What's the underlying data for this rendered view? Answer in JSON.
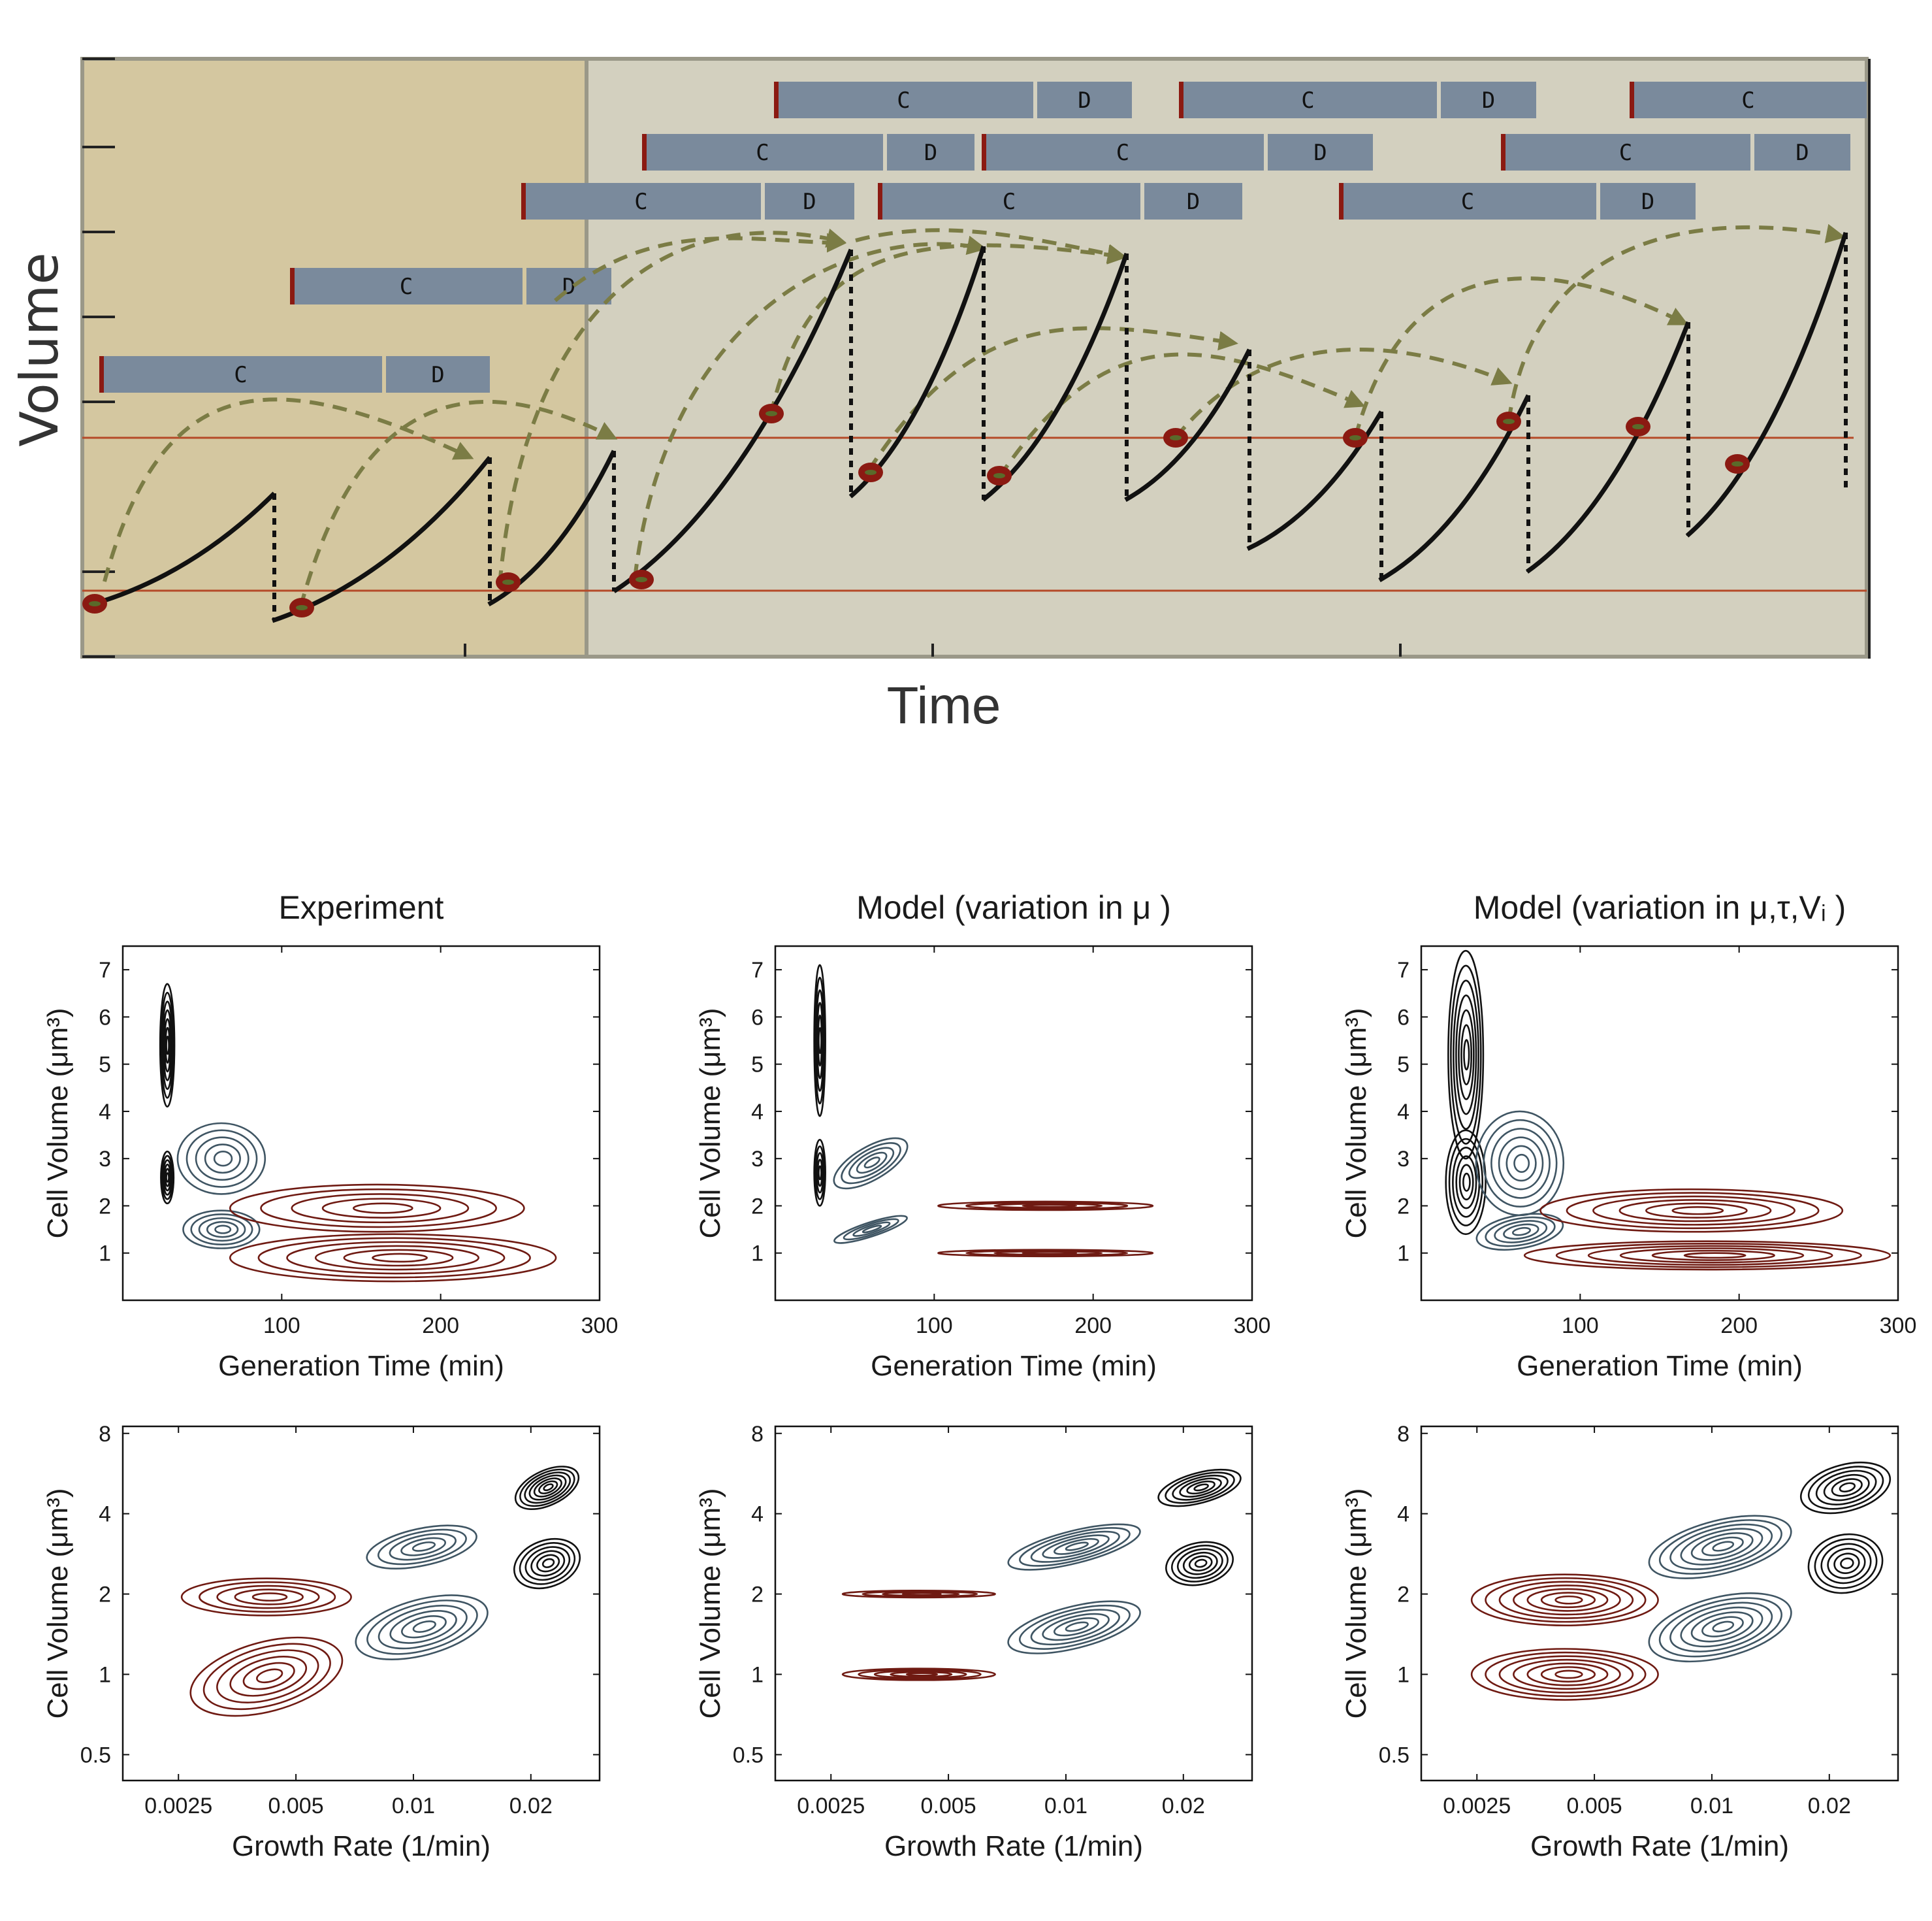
{
  "top": {
    "ylabel": "Volume",
    "xlabel": "Time",
    "c_label": "C",
    "d_label": "D"
  },
  "colors": {
    "black": "#111111",
    "blue": "#3f5563",
    "red": "#6f1a12",
    "bar": "#7a8a9c",
    "arrow": "#7b7c45",
    "threshold": "#b54a28",
    "bg_left": "#d4c7a0",
    "bg_right": "#d3d0bf"
  },
  "chart_data": [
    {
      "type": "contour",
      "title": "Experiment",
      "xlabel": "Generation Time (min)",
      "ylabel": "Cell Volume (μm³)",
      "xlim": [
        0,
        300
      ],
      "ylim": [
        0,
        7.5
      ],
      "xticks": [
        100,
        200,
        300
      ],
      "yticks": [
        1,
        2,
        3,
        4,
        5,
        6,
        7
      ],
      "clusters": [
        {
          "color": "black",
          "x": 28,
          "y": 5.4,
          "sx": 9,
          "sy": 1.3,
          "rot": 0,
          "levels": 7
        },
        {
          "color": "black",
          "x": 28,
          "y": 2.6,
          "sx": 8,
          "sy": 0.55,
          "rot": 0,
          "levels": 6
        },
        {
          "color": "blue",
          "x": 62,
          "y": 3.0,
          "sx": 55,
          "sy": 0.75,
          "rot": 0,
          "levels": 5
        },
        {
          "color": "blue",
          "x": 62,
          "y": 1.5,
          "sx": 48,
          "sy": 0.4,
          "rot": 0,
          "levels": 5
        },
        {
          "color": "red",
          "x": 160,
          "y": 1.95,
          "sx": 185,
          "sy": 0.5,
          "rot": 0,
          "levels": 5
        },
        {
          "color": "red",
          "x": 170,
          "y": 0.9,
          "sx": 205,
          "sy": 0.5,
          "rot": 0,
          "levels": 6
        }
      ]
    },
    {
      "type": "contour",
      "title": "Model (variation in μ )",
      "xlabel": "Generation Time (min)",
      "ylabel": "Cell Volume (μm³)",
      "xlim": [
        0,
        300
      ],
      "ylim": [
        0,
        7.5
      ],
      "xticks": [
        100,
        200,
        300
      ],
      "yticks": [
        1,
        2,
        3,
        4,
        5,
        6,
        7
      ],
      "clusters": [
        {
          "color": "black",
          "x": 28,
          "y": 5.5,
          "sx": 7,
          "sy": 1.6,
          "rot": 0,
          "levels": 6
        },
        {
          "color": "black",
          "x": 28,
          "y": 2.7,
          "sx": 7,
          "sy": 0.7,
          "rot": 0,
          "levels": 5
        },
        {
          "color": "blue",
          "x": 60,
          "y": 2.9,
          "sx": 52,
          "sy": 0.35,
          "rot": -30,
          "levels": 5
        },
        {
          "color": "blue",
          "x": 60,
          "y": 1.5,
          "sx": 48,
          "sy": 0.15,
          "rot": -18,
          "levels": 4
        },
        {
          "color": "red",
          "x": 170,
          "y": 2.0,
          "sx": 135,
          "sy": 0.09,
          "rot": 0,
          "levels": 4
        },
        {
          "color": "red",
          "x": 170,
          "y": 1.0,
          "sx": 135,
          "sy": 0.07,
          "rot": 0,
          "levels": 4
        }
      ]
    },
    {
      "type": "contour",
      "title": "Model (variation in μ,τ,Vᵢ )",
      "xlabel": "Generation Time (min)",
      "ylabel": "Cell Volume (μm³)",
      "xlim": [
        0,
        300
      ],
      "ylim": [
        0,
        7.5
      ],
      "xticks": [
        100,
        200,
        300
      ],
      "yticks": [
        1,
        2,
        3,
        4,
        5,
        6,
        7
      ],
      "clusters": [
        {
          "color": "black",
          "x": 28,
          "y": 5.2,
          "sx": 22,
          "sy": 2.2,
          "rot": 0,
          "levels": 7
        },
        {
          "color": "black",
          "x": 28,
          "y": 2.5,
          "sx": 25,
          "sy": 1.1,
          "rot": 0,
          "levels": 6
        },
        {
          "color": "blue",
          "x": 62,
          "y": 2.9,
          "sx": 55,
          "sy": 1.1,
          "rot": 0,
          "levels": 6
        },
        {
          "color": "blue",
          "x": 62,
          "y": 1.45,
          "sx": 55,
          "sy": 0.35,
          "rot": -10,
          "levels": 5
        },
        {
          "color": "red",
          "x": 170,
          "y": 1.9,
          "sx": 190,
          "sy": 0.45,
          "rot": 0,
          "levels": 6
        },
        {
          "color": "red",
          "x": 180,
          "y": 0.95,
          "sx": 230,
          "sy": 0.3,
          "rot": 0,
          "levels": 6
        }
      ]
    },
    {
      "type": "contour",
      "xlabel": "Growth Rate (1/min)",
      "ylabel": "Cell Volume (μm³)",
      "xscale": "log",
      "yscale": "log",
      "xlim": [
        0.0018,
        0.03
      ],
      "ylim": [
        0.4,
        8.5
      ],
      "xticks": [
        0.0025,
        0.005,
        0.01,
        0.02
      ],
      "yticks": [
        0.5,
        1,
        2,
        4,
        8
      ],
      "clusters": [
        {
          "color": "red",
          "x": 0.0042,
          "y": 1.95,
          "sx": 0.5,
          "sy": 0.16,
          "rot": 0,
          "levels": 5
        },
        {
          "color": "red",
          "x": 0.0042,
          "y": 0.98,
          "sx": 0.46,
          "sy": 0.3,
          "rot": -15,
          "levels": 6
        },
        {
          "color": "blue",
          "x": 0.0105,
          "y": 3.0,
          "sx": 0.33,
          "sy": 0.16,
          "rot": -12,
          "levels": 5
        },
        {
          "color": "blue",
          "x": 0.0105,
          "y": 1.5,
          "sx": 0.4,
          "sy": 0.24,
          "rot": -15,
          "levels": 6
        },
        {
          "color": "black",
          "x": 0.022,
          "y": 5.0,
          "sx": 0.2,
          "sy": 0.15,
          "rot": -25,
          "levels": 7
        },
        {
          "color": "black",
          "x": 0.022,
          "y": 2.6,
          "sx": 0.2,
          "sy": 0.2,
          "rot": -20,
          "levels": 6
        }
      ]
    },
    {
      "type": "contour",
      "xlabel": "Growth Rate (1/min)",
      "ylabel": "Cell Volume (μm³)",
      "xscale": "log",
      "yscale": "log",
      "xlim": [
        0.0018,
        0.03
      ],
      "ylim": [
        0.4,
        8.5
      ],
      "xticks": [
        0.0025,
        0.005,
        0.01,
        0.02
      ],
      "yticks": [
        0.5,
        1,
        2,
        4,
        8
      ],
      "clusters": [
        {
          "color": "red",
          "x": 0.0042,
          "y": 2.0,
          "sx": 0.45,
          "sy": 0.03,
          "rot": 0,
          "levels": 4
        },
        {
          "color": "red",
          "x": 0.0042,
          "y": 1.0,
          "sx": 0.45,
          "sy": 0.05,
          "rot": 0,
          "levels": 5
        },
        {
          "color": "blue",
          "x": 0.0105,
          "y": 3.0,
          "sx": 0.4,
          "sy": 0.14,
          "rot": -14,
          "levels": 6
        },
        {
          "color": "blue",
          "x": 0.0105,
          "y": 1.5,
          "sx": 0.4,
          "sy": 0.18,
          "rot": -14,
          "levels": 6
        },
        {
          "color": "black",
          "x": 0.022,
          "y": 5.0,
          "sx": 0.25,
          "sy": 0.13,
          "rot": -15,
          "levels": 6
        },
        {
          "color": "black",
          "x": 0.022,
          "y": 2.6,
          "sx": 0.2,
          "sy": 0.18,
          "rot": -12,
          "levels": 6
        }
      ]
    },
    {
      "type": "contour",
      "xlabel": "Growth Rate (1/min)",
      "ylabel": "Cell Volume (μm³)",
      "xscale": "log",
      "yscale": "log",
      "xlim": [
        0.0018,
        0.03
      ],
      "ylim": [
        0.4,
        8.5
      ],
      "xticks": [
        0.0025,
        0.005,
        0.01,
        0.02
      ],
      "yticks": [
        0.5,
        1,
        2,
        4,
        8
      ],
      "clusters": [
        {
          "color": "red",
          "x": 0.0042,
          "y": 1.9,
          "sx": 0.55,
          "sy": 0.22,
          "rot": 0,
          "levels": 7
        },
        {
          "color": "red",
          "x": 0.0042,
          "y": 1.0,
          "sx": 0.55,
          "sy": 0.22,
          "rot": 0,
          "levels": 7
        },
        {
          "color": "blue",
          "x": 0.0105,
          "y": 3.0,
          "sx": 0.43,
          "sy": 0.23,
          "rot": -14,
          "levels": 7
        },
        {
          "color": "blue",
          "x": 0.0105,
          "y": 1.5,
          "sx": 0.43,
          "sy": 0.26,
          "rot": -14,
          "levels": 7
        },
        {
          "color": "black",
          "x": 0.022,
          "y": 5.0,
          "sx": 0.27,
          "sy": 0.2,
          "rot": -15,
          "levels": 6
        },
        {
          "color": "black",
          "x": 0.022,
          "y": 2.6,
          "sx": 0.22,
          "sy": 0.25,
          "rot": -12,
          "levels": 6
        }
      ]
    }
  ]
}
